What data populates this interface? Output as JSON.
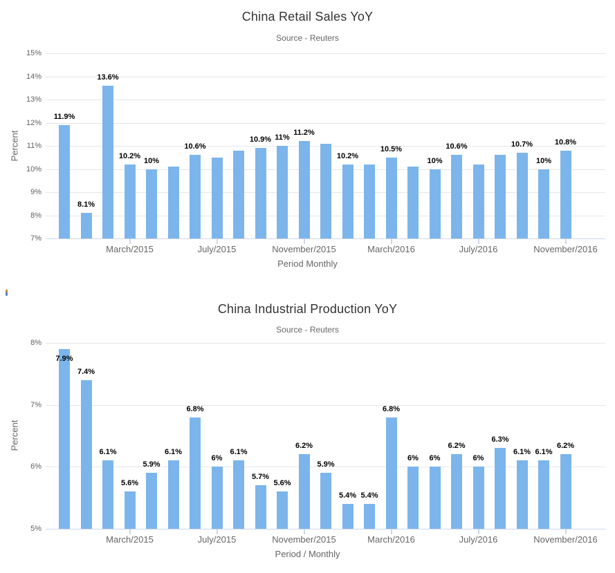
{
  "page": {
    "background": "#ffffff",
    "stray_mark": {
      "top_color": "#c8873c",
      "bottom_color": "#5b7fd6"
    }
  },
  "chart_data": [
    {
      "type": "bar",
      "title": "China Retail Sales YoY",
      "subtitle": "Source - Reuters",
      "xlabel": "Period Monthly",
      "ylabel": "Percent",
      "ylim": [
        7,
        15
      ],
      "y_tick_step": 1,
      "y_tick_labels": [
        "7%",
        "8%",
        "9%",
        "10%",
        "11%",
        "12%",
        "13%",
        "14%",
        "15%"
      ],
      "grid": true,
      "legend": "none",
      "bar_color": "#7cb5ec",
      "axis_line_color": "#ccd6eb",
      "grid_color": "#e6e6e6",
      "values": [
        11.9,
        8.1,
        13.6,
        10.2,
        10,
        10.1,
        10.6,
        10.5,
        10.8,
        10.9,
        11,
        11.2,
        11.1,
        10.2,
        10.2,
        10.5,
        10.1,
        10,
        10.6,
        10.2,
        10.6,
        10.7,
        10,
        10.8
      ],
      "value_labels": [
        "11.9%",
        "8.1%",
        "13.6%",
        "10.2%",
        "10%",
        null,
        "10.6%",
        null,
        null,
        "10.9%",
        "11%",
        "11.2%",
        null,
        "10.2%",
        null,
        "10.5%",
        null,
        "10%",
        "10.6%",
        null,
        null,
        "10.7%",
        "10%",
        "10.8%"
      ],
      "x_ticks": [
        {
          "index": 3,
          "label": "March/2015"
        },
        {
          "index": 7,
          "label": "July/2015"
        },
        {
          "index": 11,
          "label": "November/2015"
        },
        {
          "index": 15,
          "label": "March/2016"
        },
        {
          "index": 19,
          "label": "July/2016"
        },
        {
          "index": 23,
          "label": "November/2016"
        }
      ]
    },
    {
      "type": "bar",
      "title": "China Industrial Production YoY",
      "subtitle": "Source - Reuters",
      "xlabel": "Period / Monthly",
      "ylabel": "Percent",
      "ylim": [
        5,
        8
      ],
      "y_tick_step": 1,
      "y_tick_labels": [
        "5%",
        "6%",
        "7%",
        "8%"
      ],
      "grid": true,
      "legend": "none",
      "bar_color": "#7cb5ec",
      "axis_line_color": "#ccd6eb",
      "grid_color": "#e6e6e6",
      "values": [
        7.9,
        7.4,
        6.1,
        5.6,
        5.9,
        6.1,
        6.8,
        6,
        6.1,
        5.7,
        5.6,
        6.2,
        5.9,
        5.4,
        5.4,
        6.8,
        6,
        6,
        6.2,
        6,
        6.3,
        6.1,
        6.1,
        6.2
      ],
      "value_labels": [
        "7.9%",
        "7.4%",
        "6.1%",
        "5.6%",
        "5.9%",
        "6.1%",
        "6.8%",
        "6%",
        "6.1%",
        "5.7%",
        "5.6%",
        "6.2%",
        "5.9%",
        "5.4%",
        "5.4%",
        "6.8%",
        "6%",
        "6%",
        "6.2%",
        "6%",
        "6.3%",
        "6.1%",
        "6.1%",
        "6.2%"
      ],
      "x_ticks": [
        {
          "index": 3,
          "label": "March/2015"
        },
        {
          "index": 7,
          "label": "July/2015"
        },
        {
          "index": 11,
          "label": "November/2015"
        },
        {
          "index": 15,
          "label": "March/2016"
        },
        {
          "index": 19,
          "label": "July/2016"
        },
        {
          "index": 23,
          "label": "November/2016"
        }
      ]
    }
  ]
}
